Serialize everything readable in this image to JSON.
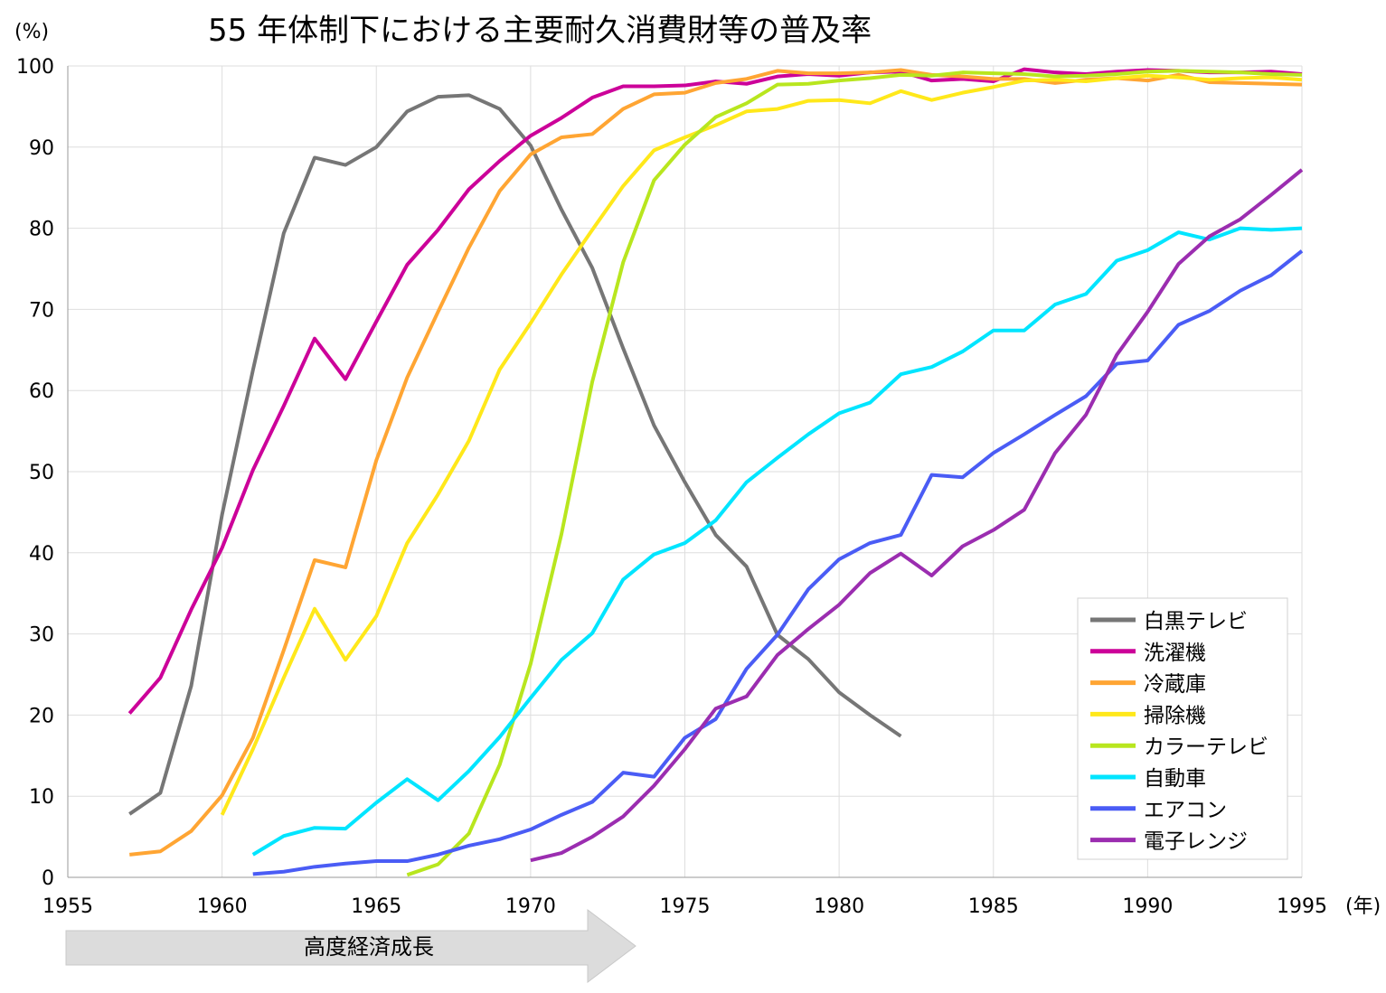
{
  "chart_data": {
    "type": "line",
    "title": "55 年体制下における主要耐久消費財等の普及率",
    "ylabel": "(%)",
    "xlabel": "(年)",
    "xlim": [
      1955,
      1995
    ],
    "ylim": [
      0,
      100
    ],
    "x_ticks": [
      1955,
      1960,
      1965,
      1970,
      1975,
      1980,
      1985,
      1990,
      1995
    ],
    "y_ticks": [
      0,
      10,
      20,
      30,
      40,
      50,
      60,
      70,
      80,
      90,
      100
    ],
    "grid": true,
    "legend_position": "bottom-right",
    "annotation": {
      "text": "高度経済成長",
      "from": 1955,
      "to": 1973
    },
    "series": [
      {
        "name": "白黒テレビ",
        "color": "#767676",
        "start": 1957,
        "values": [
          7.8,
          10.4,
          23.6,
          44.7,
          62.5,
          79.4,
          88.7,
          87.8,
          90.0,
          94.4,
          96.2,
          96.4,
          94.7,
          90.2,
          82.3,
          75.1,
          65.2,
          55.7,
          48.7,
          42.2,
          38.3,
          29.9,
          26.9,
          22.8,
          20.0,
          17.4
        ]
      },
      {
        "name": "洗濯機",
        "color": "#CC0099",
        "start": 1957,
        "values": [
          20.2,
          24.6,
          33.0,
          40.6,
          50.2,
          58.1,
          66.4,
          61.4,
          68.5,
          75.5,
          79.8,
          84.8,
          88.3,
          91.4,
          93.6,
          96.1,
          97.5,
          97.5,
          97.6,
          98.1,
          97.8,
          98.7,
          99.0,
          98.8,
          99.2,
          99.3,
          98.2,
          98.4,
          98.1,
          99.6,
          99.2,
          99.0,
          99.3,
          99.5,
          99.4,
          99.2,
          99.2,
          99.3,
          99.0
        ]
      },
      {
        "name": "冷蔵庫",
        "color": "#FFA533",
        "start": 1957,
        "values": [
          2.8,
          3.2,
          5.7,
          10.1,
          17.2,
          28.0,
          39.1,
          38.2,
          51.4,
          61.6,
          69.7,
          77.6,
          84.6,
          89.1,
          91.2,
          91.6,
          94.7,
          96.5,
          96.7,
          97.9,
          98.4,
          99.4,
          99.1,
          99.1,
          99.2,
          99.5,
          98.9,
          98.7,
          98.4,
          98.4,
          97.9,
          98.3,
          98.5,
          98.2,
          98.9,
          98.0,
          97.9,
          97.8,
          97.7
        ]
      },
      {
        "name": "掃除機",
        "color": "#FFE81A",
        "start": 1960,
        "values": [
          7.7,
          15.8,
          24.6,
          33.1,
          26.8,
          32.2,
          41.2,
          47.2,
          53.8,
          62.6,
          68.3,
          74.3,
          79.8,
          85.2,
          89.6,
          91.2,
          92.7,
          94.4,
          94.7,
          95.7,
          95.8,
          95.4,
          96.9,
          95.8,
          96.7,
          97.4,
          98.2,
          98.3,
          98.1,
          98.5,
          98.8,
          98.6,
          98.3,
          98.5,
          98.6,
          98.3
        ]
      },
      {
        "name": "カラーテレビ",
        "color": "#B8E61E",
        "start": 1966,
        "values": [
          0.3,
          1.6,
          5.4,
          13.9,
          26.3,
          42.3,
          61.1,
          75.8,
          85.9,
          90.3,
          93.7,
          95.4,
          97.7,
          97.8,
          98.2,
          98.5,
          98.9,
          98.8,
          99.2,
          99.1,
          99.0,
          98.7,
          98.8,
          99.0,
          99.3,
          99.4,
          99.3,
          99.2,
          99.0,
          98.9
        ]
      },
      {
        "name": "自動車",
        "color": "#00E5FF",
        "start": 1961,
        "values": [
          2.8,
          5.1,
          6.1,
          6.0,
          9.2,
          12.1,
          9.5,
          13.1,
          17.3,
          22.1,
          26.8,
          30.1,
          36.7,
          39.8,
          41.2,
          44.0,
          48.7,
          51.7,
          54.6,
          57.2,
          58.5,
          62.0,
          62.9,
          64.8,
          67.4,
          67.4,
          70.6,
          71.9,
          76.0,
          77.3,
          79.5,
          78.6,
          80.0,
          79.8,
          80.0
        ]
      },
      {
        "name": "エアコン",
        "color": "#4A5CF5",
        "start": 1961,
        "values": [
          0.4,
          0.7,
          1.3,
          1.7,
          2.0,
          2.0,
          2.8,
          3.9,
          4.7,
          5.9,
          7.7,
          9.3,
          12.9,
          12.4,
          17.2,
          19.5,
          25.7,
          29.9,
          35.5,
          39.2,
          41.2,
          42.2,
          49.6,
          49.3,
          52.3,
          54.6,
          57.0,
          59.3,
          63.3,
          63.7,
          68.1,
          69.8,
          72.3,
          74.2,
          77.2
        ]
      },
      {
        "name": "電子レンジ",
        "color": "#9B2DB0",
        "start": 1970,
        "values": [
          2.1,
          3.0,
          5.0,
          7.5,
          11.3,
          15.8,
          20.8,
          22.3,
          27.4,
          30.6,
          33.6,
          37.5,
          39.9,
          37.2,
          40.8,
          42.8,
          45.3,
          52.3,
          57.0,
          64.4,
          69.7,
          75.6,
          79.0,
          81.1,
          84.1,
          87.2
        ]
      }
    ]
  }
}
